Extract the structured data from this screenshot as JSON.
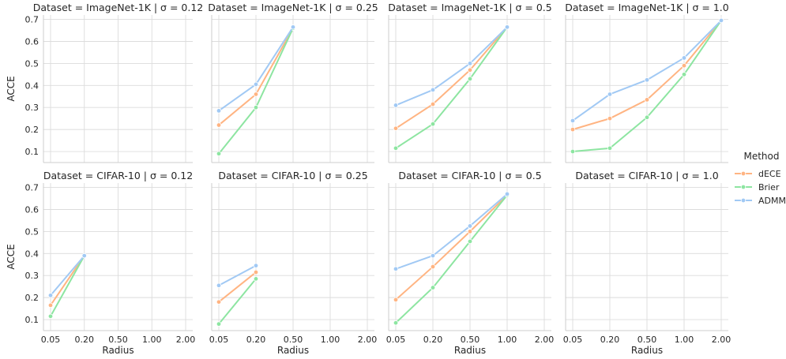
{
  "chart_data": {
    "type": "line",
    "facet_grid": true,
    "x_categories": [
      "0.05",
      "0.20",
      "0.50",
      "1.00",
      "2.00"
    ],
    "ylabel": "ACCE",
    "xlabel": "Radius",
    "ylim": [
      0.05,
      0.72
    ],
    "yticks": [
      "0.1",
      "0.2",
      "0.3",
      "0.4",
      "0.5",
      "0.6",
      "0.7"
    ],
    "grid": true,
    "legend": {
      "title": "Method",
      "placement": "right",
      "entries": [
        {
          "name": "dECE",
          "color": "#ffb482"
        },
        {
          "name": "Brier",
          "color": "#8de5a1"
        },
        {
          "name": "ADMM",
          "color": "#a1c9f4"
        }
      ]
    },
    "panels": [
      {
        "title": "Dataset = ImageNet-1K | σ = 0.12",
        "series": []
      },
      {
        "title": "Dataset = ImageNet-1K | σ = 0.25",
        "series": [
          {
            "name": "dECE",
            "x": [
              "0.05",
              "0.20",
              "0.50"
            ],
            "values": [
              0.22,
              0.36,
              0.66
            ]
          },
          {
            "name": "Brier",
            "x": [
              "0.05",
              "0.20",
              "0.50"
            ],
            "values": [
              0.09,
              0.3,
              0.66
            ]
          },
          {
            "name": "ADMM",
            "x": [
              "0.05",
              "0.20",
              "0.50"
            ],
            "values": [
              0.285,
              0.405,
              0.665
            ]
          }
        ]
      },
      {
        "title": "Dataset = ImageNet-1K | σ = 0.5",
        "series": [
          {
            "name": "dECE",
            "x": [
              "0.05",
              "0.20",
              "0.50",
              "1.00"
            ],
            "values": [
              0.205,
              0.315,
              0.47,
              0.665
            ]
          },
          {
            "name": "Brier",
            "x": [
              "0.05",
              "0.20",
              "0.50",
              "1.00"
            ],
            "values": [
              0.115,
              0.225,
              0.43,
              0.665
            ]
          },
          {
            "name": "ADMM",
            "x": [
              "0.05",
              "0.20",
              "0.50",
              "1.00"
            ],
            "values": [
              0.31,
              0.38,
              0.5,
              0.665
            ]
          }
        ]
      },
      {
        "title": "Dataset = ImageNet-1K | σ = 1.0",
        "series": [
          {
            "name": "dECE",
            "x": [
              "0.05",
              "0.20",
              "0.50",
              "1.00",
              "2.00"
            ],
            "values": [
              0.2,
              0.25,
              0.335,
              0.49,
              0.695
            ]
          },
          {
            "name": "Brier",
            "x": [
              "0.05",
              "0.20",
              "0.50",
              "1.00",
              "2.00"
            ],
            "values": [
              0.1,
              0.115,
              0.255,
              0.45,
              0.695
            ]
          },
          {
            "name": "ADMM",
            "x": [
              "0.05",
              "0.20",
              "0.50",
              "1.00",
              "2.00"
            ],
            "values": [
              0.24,
              0.36,
              0.425,
              0.525,
              0.695
            ]
          }
        ]
      },
      {
        "title": "Dataset = CIFAR-10 | σ = 0.12",
        "series": [
          {
            "name": "dECE",
            "x": [
              "0.05",
              "0.20"
            ],
            "values": [
              0.165,
              0.39
            ]
          },
          {
            "name": "Brier",
            "x": [
              "0.05",
              "0.20"
            ],
            "values": [
              0.115,
              0.39
            ]
          },
          {
            "name": "ADMM",
            "x": [
              "0.05",
              "0.20"
            ],
            "values": [
              0.21,
              0.39
            ]
          }
        ]
      },
      {
        "title": "Dataset = CIFAR-10 | σ = 0.25",
        "series": [
          {
            "name": "dECE",
            "x": [
              "0.05",
              "0.20"
            ],
            "values": [
              0.18,
              0.315
            ]
          },
          {
            "name": "Brier",
            "x": [
              "0.05",
              "0.20"
            ],
            "values": [
              0.08,
              0.285
            ]
          },
          {
            "name": "ADMM",
            "x": [
              "0.05",
              "0.20"
            ],
            "values": [
              0.255,
              0.345
            ]
          }
        ]
      },
      {
        "title": "Dataset = CIFAR-10 | σ = 0.5",
        "series": [
          {
            "name": "dECE",
            "x": [
              "0.05",
              "0.20",
              "0.50",
              "1.00"
            ],
            "values": [
              0.19,
              0.34,
              0.5,
              0.665
            ]
          },
          {
            "name": "Brier",
            "x": [
              "0.05",
              "0.20",
              "0.50",
              "1.00"
            ],
            "values": [
              0.085,
              0.245,
              0.455,
              0.665
            ]
          },
          {
            "name": "ADMM",
            "x": [
              "0.05",
              "0.20",
              "0.50",
              "1.00"
            ],
            "values": [
              0.33,
              0.39,
              0.525,
              0.67
            ]
          }
        ]
      },
      {
        "title": "Dataset = CIFAR-10 | σ = 1.0",
        "series": []
      }
    ]
  }
}
